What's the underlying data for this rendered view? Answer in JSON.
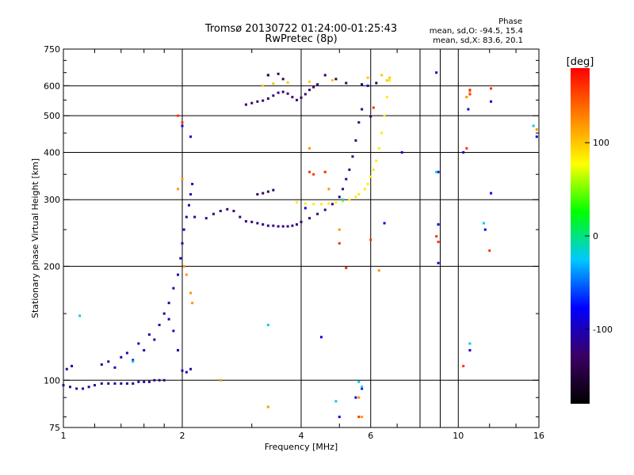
{
  "chart_data": {
    "type": "scatter",
    "title": "Tromsø 20130722 01:24:00-01:25:43",
    "subtitle": "RwPretec (8p)",
    "xlabel": "Frequency [MHz]",
    "ylabel": "Stationary phase Virtual Height [km]",
    "xscale": "log",
    "yscale": "log",
    "xlim": [
      1,
      16
    ],
    "ylim": [
      75,
      750
    ],
    "xticks": [
      1,
      2,
      4,
      6,
      10,
      16
    ],
    "xtick_labels": [
      "1",
      "2",
      "4",
      "6",
      "10",
      "16"
    ],
    "xgrid": [
      2,
      4,
      6,
      8,
      9,
      10
    ],
    "yticks": [
      75,
      100,
      200,
      300,
      400,
      500,
      600,
      750
    ],
    "ytick_labels": [
      "75",
      "100",
      "200",
      "300",
      "400",
      "500",
      "600",
      "750"
    ],
    "ygrid": [
      100,
      200,
      300,
      400,
      500,
      600
    ],
    "grid": true,
    "colorbar": {
      "label": "[deg]",
      "range": [
        -180,
        180
      ],
      "ticks": [
        -100,
        0,
        100
      ],
      "tick_labels": [
        "-100",
        "0",
        "100"
      ],
      "colors": [
        "#000000",
        "#3c0064",
        "#0000ff",
        "#00c8ff",
        "#00ff00",
        "#ffff00",
        "#ff8000",
        "#ff0000"
      ]
    },
    "phase_stats": {
      "header": "Phase",
      "o_line": "mean, sd,O: -94.5, 15.4",
      "x_line": "mean, sd,X:  83.6, 20.1"
    },
    "series": [
      {
        "phase_deg": -112,
        "points": [
          [
            1.0,
            97
          ],
          [
            1.04,
            96
          ],
          [
            1.08,
            95
          ],
          [
            1.12,
            95
          ],
          [
            1.16,
            96
          ],
          [
            1.2,
            97
          ],
          [
            1.25,
            98
          ],
          [
            1.3,
            98
          ],
          [
            1.35,
            98
          ],
          [
            1.4,
            98
          ],
          [
            1.45,
            98
          ],
          [
            1.5,
            98
          ],
          [
            1.55,
            99
          ],
          [
            1.6,
            99
          ],
          [
            1.65,
            99
          ],
          [
            1.7,
            100
          ],
          [
            1.75,
            100
          ],
          [
            1.8,
            100
          ]
        ]
      },
      {
        "phase_deg": -105,
        "points": [
          [
            1.02,
            107
          ],
          [
            1.05,
            109
          ],
          [
            1.25,
            110
          ],
          [
            1.3,
            112
          ],
          [
            1.35,
            108
          ],
          [
            1.4,
            115
          ],
          [
            1.45,
            118
          ],
          [
            1.5,
            113
          ],
          [
            1.55,
            125
          ],
          [
            1.6,
            120
          ],
          [
            1.65,
            132
          ],
          [
            1.7,
            128
          ],
          [
            1.75,
            140
          ],
          [
            1.8,
            150
          ],
          [
            1.85,
            160
          ],
          [
            1.9,
            175
          ],
          [
            1.95,
            190
          ],
          [
            1.98,
            210
          ],
          [
            2.0,
            230
          ],
          [
            2.02,
            250
          ],
          [
            2.05,
            270
          ],
          [
            2.08,
            290
          ],
          [
            2.1,
            310
          ],
          [
            2.12,
            330
          ],
          [
            2.0,
            106
          ],
          [
            2.05,
            105
          ],
          [
            2.1,
            107
          ],
          [
            1.95,
            120
          ],
          [
            1.9,
            135
          ],
          [
            1.85,
            145
          ]
        ]
      },
      {
        "phase_deg": -120,
        "points": [
          [
            2.15,
            270
          ],
          [
            2.3,
            268
          ],
          [
            2.4,
            275
          ],
          [
            2.5,
            280
          ],
          [
            2.6,
            283
          ],
          [
            2.7,
            280
          ],
          [
            2.8,
            270
          ],
          [
            2.9,
            263
          ],
          [
            3.0,
            262
          ],
          [
            3.1,
            260
          ],
          [
            3.2,
            258
          ],
          [
            3.3,
            256
          ],
          [
            3.4,
            256
          ],
          [
            3.5,
            255
          ],
          [
            3.6,
            255
          ],
          [
            3.7,
            255
          ],
          [
            3.8,
            256
          ],
          [
            3.9,
            258
          ],
          [
            4.0,
            262
          ],
          [
            4.2,
            268
          ],
          [
            4.4,
            275
          ],
          [
            4.6,
            282
          ],
          [
            4.8,
            292
          ],
          [
            5.0,
            305
          ],
          [
            5.1,
            320
          ],
          [
            5.2,
            340
          ],
          [
            5.3,
            360
          ],
          [
            5.4,
            390
          ],
          [
            5.5,
            430
          ],
          [
            5.6,
            480
          ],
          [
            5.7,
            520
          ]
        ]
      },
      {
        "phase_deg": 85,
        "points": [
          [
            3.9,
            295
          ],
          [
            4.1,
            293
          ],
          [
            4.3,
            292
          ],
          [
            4.5,
            292
          ],
          [
            4.7,
            293
          ],
          [
            4.9,
            295
          ],
          [
            5.1,
            297
          ],
          [
            5.3,
            300
          ],
          [
            5.5,
            305
          ],
          [
            5.6,
            310
          ],
          [
            5.8,
            320
          ],
          [
            5.9,
            330
          ],
          [
            6.0,
            345
          ],
          [
            6.1,
            360
          ],
          [
            6.2,
            380
          ],
          [
            6.3,
            410
          ],
          [
            6.4,
            450
          ],
          [
            6.5,
            500
          ],
          [
            6.6,
            560
          ],
          [
            6.7,
            620
          ]
        ]
      },
      {
        "phase_deg": -125,
        "points": [
          [
            3.1,
            545
          ],
          [
            3.2,
            548
          ],
          [
            3.3,
            555
          ],
          [
            3.4,
            565
          ],
          [
            3.5,
            575
          ],
          [
            3.6,
            578
          ],
          [
            3.7,
            572
          ],
          [
            3.8,
            560
          ],
          [
            3.9,
            550
          ],
          [
            4.0,
            558
          ],
          [
            4.1,
            570
          ],
          [
            4.2,
            585
          ],
          [
            4.3,
            595
          ],
          [
            4.4,
            605
          ],
          [
            2.9,
            535
          ],
          [
            3.0,
            540
          ]
        ]
      },
      {
        "phase_deg": -140,
        "points": [
          [
            3.3,
            640
          ],
          [
            3.5,
            645
          ],
          [
            3.6,
            625
          ],
          [
            3.1,
            310
          ],
          [
            3.2,
            312
          ],
          [
            3.3,
            315
          ],
          [
            3.4,
            318
          ],
          [
            3.3,
            640
          ],
          [
            4.6,
            640
          ],
          [
            4.9,
            625
          ],
          [
            5.2,
            610
          ],
          [
            5.7,
            605
          ],
          [
            6.0,
            498
          ],
          [
            6.2,
            610
          ]
        ]
      },
      {
        "phase_deg": 100,
        "points": [
          [
            3.2,
            600
          ],
          [
            3.4,
            608
          ],
          [
            3.7,
            612
          ],
          [
            4.2,
            615
          ],
          [
            4.8,
            620
          ],
          [
            5.9,
            630
          ],
          [
            6.4,
            640
          ],
          [
            6.6,
            620
          ],
          [
            6.7,
            630
          ]
        ]
      },
      {
        "phase_deg": 120,
        "points": [
          [
            1.95,
            320
          ],
          [
            2.0,
            340
          ],
          [
            2.02,
            200
          ],
          [
            2.05,
            190
          ],
          [
            2.1,
            170
          ],
          [
            2.12,
            160
          ],
          [
            2.5,
            100
          ],
          [
            3.3,
            85
          ],
          [
            4.2,
            410
          ],
          [
            4.6,
            355
          ],
          [
            4.7,
            320
          ],
          [
            5.0,
            250
          ],
          [
            5.6,
            90
          ],
          [
            5.7,
            80
          ],
          [
            6.3,
            195
          ],
          [
            10.5,
            560
          ],
          [
            10.7,
            580
          ],
          [
            15.8,
            460
          ]
        ]
      },
      {
        "phase_deg": 160,
        "points": [
          [
            1.95,
            500
          ],
          [
            2.0,
            480
          ],
          [
            4.2,
            355
          ],
          [
            4.3,
            350
          ],
          [
            4.6,
            355
          ],
          [
            5.0,
            230
          ],
          [
            5.2,
            198
          ],
          [
            5.6,
            80
          ],
          [
            6.0,
            235
          ],
          [
            6.1,
            525
          ],
          [
            8.8,
            240
          ],
          [
            8.9,
            232
          ],
          [
            10.3,
            109
          ],
          [
            10.5,
            410
          ],
          [
            10.7,
            585
          ],
          [
            10.7,
            570
          ],
          [
            12.0,
            220
          ],
          [
            12.1,
            590
          ]
        ]
      },
      {
        "phase_deg": -90,
        "points": [
          [
            2.0,
            470
          ],
          [
            2.1,
            440
          ],
          [
            4.1,
            285
          ],
          [
            4.5,
            130
          ],
          [
            5.0,
            80
          ],
          [
            5.5,
            90
          ],
          [
            5.7,
            95
          ],
          [
            5.9,
            600
          ],
          [
            6.5,
            260
          ],
          [
            7.2,
            400
          ],
          [
            8.8,
            650
          ],
          [
            8.9,
            355
          ],
          [
            8.9,
            258
          ],
          [
            8.9,
            204
          ],
          [
            10.3,
            400
          ],
          [
            10.6,
            520
          ],
          [
            10.7,
            120
          ],
          [
            11.7,
            250
          ],
          [
            12.1,
            312
          ],
          [
            12.1,
            545
          ],
          [
            15.8,
            440
          ]
        ]
      },
      {
        "phase_deg": -20,
        "points": [
          [
            1.1,
            148
          ],
          [
            1.5,
            112
          ],
          [
            3.3,
            140
          ],
          [
            4.9,
            88
          ],
          [
            5.1,
            300
          ],
          [
            5.6,
            99
          ],
          [
            5.7,
            96
          ],
          [
            8.8,
            355
          ],
          [
            10.7,
            125
          ],
          [
            11.6,
            260
          ],
          [
            15.5,
            470
          ]
        ]
      }
    ]
  },
  "phase_header": "Phase",
  "phase_o": "mean, sd,O: -94.5, 15.4",
  "phase_x": "mean, sd,X:  83.6, 20.1"
}
